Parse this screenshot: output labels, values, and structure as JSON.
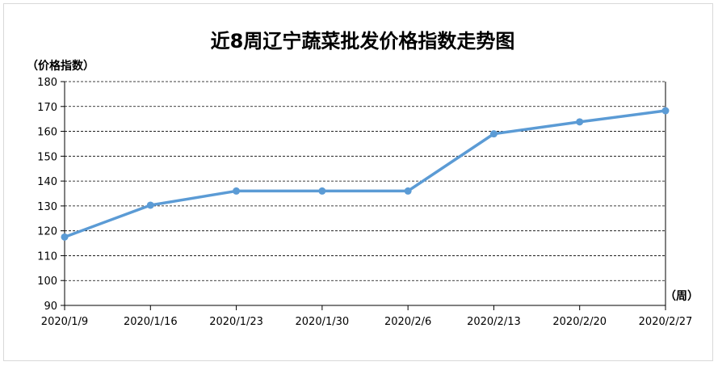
{
  "chart_data": {
    "type": "line",
    "title": "近8周辽宁蔬菜批发价格指数走势图",
    "ylabel": "（价格指数）",
    "xlabel": "（周）",
    "categories": [
      "2020/1/9",
      "2020/1/16",
      "2020/1/23",
      "2020/1/30",
      "2020/2/6",
      "2020/2/13",
      "2020/2/20",
      "2020/2/27"
    ],
    "series": [
      {
        "values": [
          117.5,
          130.3,
          136,
          136,
          136,
          159,
          163.8,
          168.3
        ],
        "color": "#5b9bd5"
      }
    ],
    "ylim": [
      90,
      180
    ],
    "yticks": [
      90,
      100,
      110,
      120,
      130,
      140,
      150,
      160,
      170,
      180
    ],
    "grid": true,
    "grid_style": "dashed",
    "legend": "none"
  }
}
